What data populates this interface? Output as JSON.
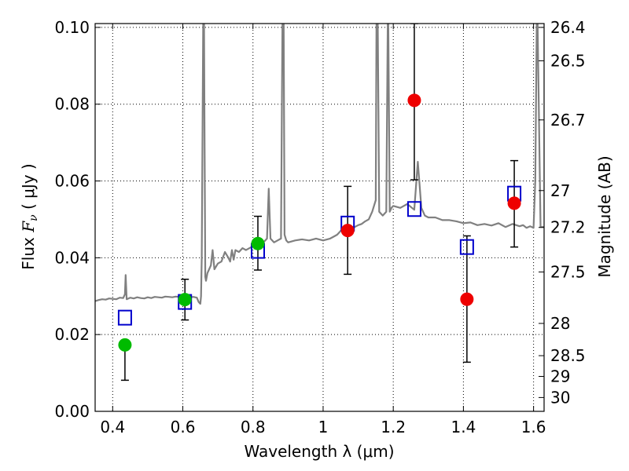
{
  "chart_data": {
    "type": "scatter",
    "xlabel": "Wavelength  λ (μm)",
    "ylabel_prefix": "Flux ",
    "ylabel_symbol": "F",
    "ylabel_subscript": "ν",
    "ylabel_suffix": "  ( μJy )",
    "y2label": "Magnitude (AB)",
    "xlim": [
      0.35,
      1.63
    ],
    "ylim": [
      0.0,
      0.101
    ],
    "grid": true,
    "x_ticks": [
      0.4,
      0.6,
      0.8,
      1.0,
      1.2,
      1.4,
      1.6
    ],
    "x_tick_labels": [
      "0.4",
      "0.6",
      "0.8",
      "1",
      "1.2",
      "1.4",
      "1.6"
    ],
    "y_ticks": [
      0.0,
      0.02,
      0.04,
      0.06,
      0.08,
      0.1
    ],
    "y_tick_labels": [
      "0.00",
      "0.02",
      "0.04",
      "0.06",
      "0.08",
      "0.10"
    ],
    "y2_ticks": [
      {
        "label": "26.4",
        "flux": 0.1
      },
      {
        "label": "26.5",
        "flux": 0.0913
      },
      {
        "label": "26.7",
        "flux": 0.0759
      },
      {
        "label": "27",
        "flux": 0.0575
      },
      {
        "label": "27.2",
        "flux": 0.0479
      },
      {
        "label": "27.5",
        "flux": 0.0363
      },
      {
        "label": "28",
        "flux": 0.0229
      },
      {
        "label": "28.5",
        "flux": 0.0145
      },
      {
        "label": "29",
        "flux": 0.0091
      },
      {
        "label": "30",
        "flux": 0.0036
      }
    ],
    "series": [
      {
        "role": "spectrum",
        "color": "#808080",
        "x": [
          0.35,
          0.36,
          0.37,
          0.38,
          0.39,
          0.4,
          0.41,
          0.42,
          0.43,
          0.435,
          0.437,
          0.44,
          0.45,
          0.46,
          0.47,
          0.48,
          0.49,
          0.5,
          0.51,
          0.52,
          0.53,
          0.54,
          0.55,
          0.56,
          0.57,
          0.58,
          0.59,
          0.6,
          0.61,
          0.62,
          0.63,
          0.64,
          0.645,
          0.65,
          0.652,
          0.654,
          0.656,
          0.658,
          0.66,
          0.662,
          0.664,
          0.666,
          0.67,
          0.675,
          0.68,
          0.685,
          0.69,
          0.7,
          0.71,
          0.72,
          0.73,
          0.735,
          0.74,
          0.745,
          0.75,
          0.76,
          0.77,
          0.78,
          0.79,
          0.8,
          0.81,
          0.82,
          0.83,
          0.84,
          0.845,
          0.85,
          0.86,
          0.87,
          0.88,
          0.884,
          0.887,
          0.89,
          0.895,
          0.9,
          0.92,
          0.94,
          0.96,
          0.98,
          1.0,
          1.02,
          1.03,
          1.04,
          1.05,
          1.06,
          1.07,
          1.08,
          1.09,
          1.1,
          1.11,
          1.12,
          1.13,
          1.14,
          1.15,
          1.152,
          1.155,
          1.16,
          1.17,
          1.18,
          1.185,
          1.19,
          1.195,
          1.2,
          1.22,
          1.24,
          1.26,
          1.27,
          1.28,
          1.29,
          1.3,
          1.32,
          1.34,
          1.36,
          1.38,
          1.4,
          1.42,
          1.44,
          1.46,
          1.48,
          1.5,
          1.52,
          1.54,
          1.56,
          1.57,
          1.58,
          1.59,
          1.6,
          1.605,
          1.61,
          1.62,
          1.63
        ],
        "y": [
          0.0287,
          0.029,
          0.0292,
          0.0291,
          0.0294,
          0.0293,
          0.0292,
          0.0296,
          0.0295,
          0.0305,
          0.0355,
          0.0292,
          0.0296,
          0.0294,
          0.0297,
          0.0295,
          0.0294,
          0.0297,
          0.0295,
          0.0298,
          0.0297,
          0.0296,
          0.0299,
          0.0298,
          0.0297,
          0.0299,
          0.0298,
          0.0299,
          0.0298,
          0.0297,
          0.0298,
          0.0296,
          0.0285,
          0.028,
          0.03,
          0.04,
          0.07,
          0.1,
          0.11,
          0.07,
          0.035,
          0.034,
          0.036,
          0.037,
          0.038,
          0.042,
          0.037,
          0.0385,
          0.039,
          0.0415,
          0.04,
          0.039,
          0.042,
          0.0395,
          0.042,
          0.0415,
          0.0425,
          0.042,
          0.0425,
          0.043,
          0.0435,
          0.0435,
          0.044,
          0.045,
          0.058,
          0.045,
          0.044,
          0.0445,
          0.045,
          0.1,
          0.11,
          0.046,
          0.0445,
          0.044,
          0.0445,
          0.0448,
          0.0445,
          0.045,
          0.0445,
          0.045,
          0.0455,
          0.046,
          0.047,
          0.0475,
          0.048,
          0.048,
          0.048,
          0.0485,
          0.0488,
          0.0495,
          0.05,
          0.052,
          0.055,
          0.1,
          0.11,
          0.052,
          0.051,
          0.052,
          0.11,
          0.052,
          0.053,
          0.0535,
          0.053,
          0.054,
          0.0525,
          0.065,
          0.053,
          0.051,
          0.0505,
          0.0505,
          0.0498,
          0.0498,
          0.0495,
          0.049,
          0.0492,
          0.0485,
          0.0488,
          0.0484,
          0.049,
          0.048,
          0.0488,
          0.0482,
          0.0485,
          0.0478,
          0.0482,
          0.0478,
          0.06,
          0.11,
          0.048,
          0.048
        ]
      },
      {
        "role": "model-photometry",
        "marker": "open-square",
        "color": "#0000cc",
        "x": [
          0.435,
          0.606,
          0.814,
          1.07,
          1.26,
          1.41,
          1.545
        ],
        "y": [
          0.0244,
          0.0285,
          0.0418,
          0.0489,
          0.0527,
          0.0428,
          0.0567
        ]
      },
      {
        "role": "observed-green",
        "marker": "filled-circle",
        "color": "#00bb00",
        "x": [
          0.435,
          0.606,
          0.814
        ],
        "y": [
          0.0173,
          0.0291,
          0.0437
        ],
        "yerr_low": [
          0.0081,
          0.0238,
          0.0368
        ],
        "yerr_high": [
          0.0176,
          0.0344,
          0.0508
        ]
      },
      {
        "role": "observed-red",
        "marker": "filled-circle",
        "color": "#ee0000",
        "x": [
          1.07,
          1.26,
          1.41,
          1.545
        ],
        "y": [
          0.0471,
          0.081,
          0.0292,
          0.0542
        ],
        "yerr_low": [
          0.0357,
          0.0603,
          0.0128,
          0.0428
        ],
        "yerr_high": [
          0.0586,
          0.101,
          0.0457,
          0.0653
        ]
      }
    ]
  }
}
